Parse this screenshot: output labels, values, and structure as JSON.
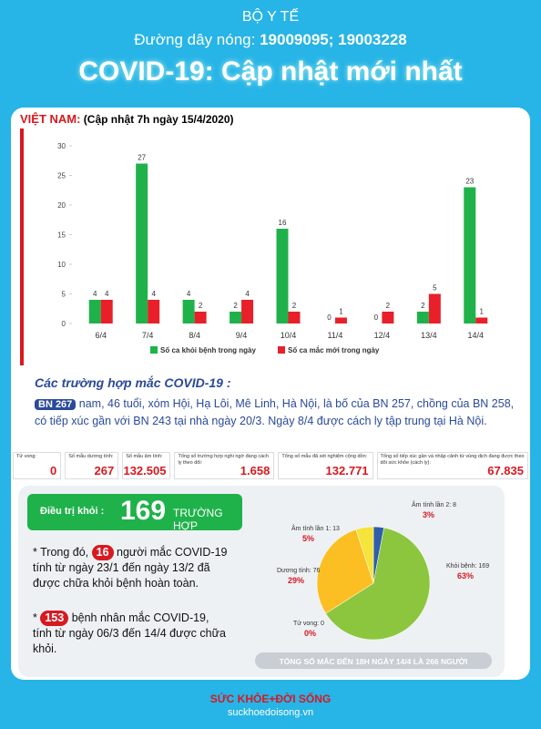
{
  "header": {
    "ministry": "BỘ Y TẾ",
    "hotline_label": "Đường dây nóng:",
    "hotline": "19009095; 19003228",
    "title": "COVID-19: Cập nhật mới nhất"
  },
  "update": {
    "country": "VIỆT NAM:",
    "time": "(Cập nhật 7h ngày 15/4/2020)"
  },
  "chart_data": [
    {
      "type": "bar",
      "categories": [
        "6/4",
        "7/4",
        "8/4",
        "9/4",
        "10/4",
        "11/4",
        "12/4",
        "13/4",
        "14/4"
      ],
      "series": [
        {
          "name": "Số ca khỏi bệnh trong ngày",
          "color": "#1fb24a",
          "values": [
            4,
            27,
            4,
            2,
            16,
            0,
            0,
            2,
            23
          ]
        },
        {
          "name": "Số ca mắc mới trong ngày",
          "color": "#e8202a",
          "values": [
            4,
            4,
            2,
            4,
            2,
            1,
            2,
            5,
            1
          ]
        }
      ],
      "ylim": [
        0,
        30
      ],
      "yticks": [
        0,
        5,
        10,
        15,
        20,
        25,
        30
      ],
      "grid": false,
      "legend": "bottom"
    },
    {
      "type": "pie",
      "categories": [
        "Âm tính lần 2: 8",
        "Khỏi bệnh: 169",
        "Tử vong: 0",
        "Dương tính: 76",
        "Âm tính lần 1: 13"
      ],
      "values": [
        3,
        63,
        0,
        29,
        5
      ],
      "value_labels": [
        "3%",
        "63%",
        "0%",
        "29%",
        "5%"
      ],
      "colors": [
        "#2e5fa8",
        "#8cc63e",
        "#e02b2b",
        "#fbbf24",
        "#f5e43a"
      ],
      "caption": "TỔNG SỐ MẮC ĐẾN 18H NGÀY 14/4 LÀ 266 NGƯỜI"
    }
  ],
  "cases": {
    "title": "Các trường hợp mắc COVID-19 :",
    "patient": "BN 267",
    "text": "nam, 46 tuổi, xóm Hội, Hạ Lôi, Mê Linh, Hà Nội, là bố của BN 257, chồng của BN 258, có tiếp xúc gần với BN 243 tại nhà ngày 20/3. Ngày 8/4 được cách ly tập trung tại Hà Nội."
  },
  "stats": [
    {
      "label": "Tử vong:",
      "value": "0"
    },
    {
      "label": "Số mẫu dương tính:",
      "value": "267"
    },
    {
      "label": "Số mẫu âm tính:",
      "value": "132.505"
    },
    {
      "label": "Tổng số trường hợp nghi ngờ đang cách ly theo dõi:",
      "value": "1.658"
    },
    {
      "label": "Tổng số mẫu đã xét nghiệm cộng dồn:",
      "value": "132.771"
    },
    {
      "label": "Tổng số tiếp xúc gần và nhập cảnh từ vùng dịch đang được theo dõi sức khỏe (cách ly):",
      "value": "67.835"
    }
  ],
  "recovered": {
    "label": "Điều trị khỏi :",
    "value": "169",
    "unit": "TRƯỜNG HỢP",
    "notes": [
      {
        "prefix": "* Trong đó,",
        "number": "16",
        "text": "người mắc COVID-19 tính từ ngày 23/1 đến ngày 13/2 đã được chữa khỏi bệnh hoàn toàn."
      },
      {
        "prefix": "*",
        "number": "153",
        "text": "bệnh nhân mắc COVID-19, tính từ ngày 06/3 đến 14/4 được chữa khỏi."
      }
    ]
  },
  "footer": {
    "brand": "SỨC KHỎE+ĐỜI SỐNG",
    "site": "suckhoedoisong.vn"
  }
}
